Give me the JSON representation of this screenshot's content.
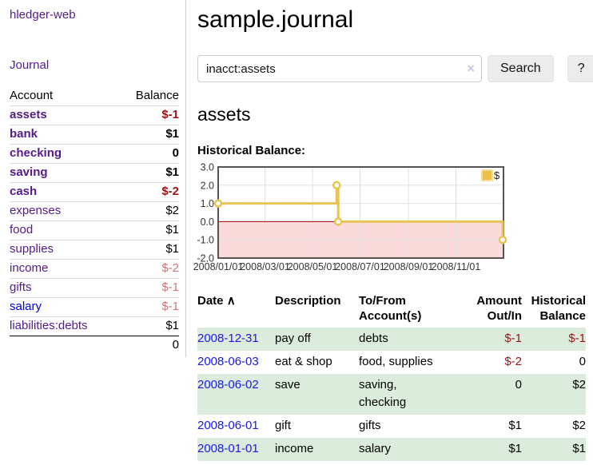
{
  "app": {
    "title": "hledger-web"
  },
  "sidebar": {
    "journal_link": "Journal",
    "accounts_table": {
      "headers": {
        "account": "Account",
        "balance": "Balance"
      },
      "rows": [
        {
          "name": "assets",
          "balance": "$-1",
          "level": 1,
          "bold": true,
          "balance_style": "neg-strong"
        },
        {
          "name": "bank",
          "balance": "$1",
          "level": 2,
          "bold": true,
          "balance_style": "normal"
        },
        {
          "name": "checking",
          "balance": "0",
          "level": 3,
          "bold": true,
          "balance_style": "normal"
        },
        {
          "name": "saving",
          "balance": "$1",
          "level": 3,
          "bold": true,
          "balance_style": "normal"
        },
        {
          "name": "cash",
          "balance": "$-2",
          "level": 2,
          "bold": true,
          "balance_style": "neg-strong"
        },
        {
          "name": "expenses",
          "balance": "$2",
          "level": 1,
          "bold": false,
          "balance_style": "normal"
        },
        {
          "name": "food",
          "balance": "$1",
          "level": 2,
          "bold": false,
          "balance_style": "normal"
        },
        {
          "name": "supplies",
          "balance": "$1",
          "level": 2,
          "bold": false,
          "balance_style": "normal"
        },
        {
          "name": "income",
          "balance": "$-2",
          "level": 1,
          "bold": false,
          "balance_style": "neg-muted"
        },
        {
          "name": "gifts",
          "balance": "$-1",
          "level": 2,
          "bold": false,
          "balance_style": "neg-muted"
        },
        {
          "name": "salary",
          "balance": "$-1",
          "level": 2,
          "bold": false,
          "balance_style": "neg-muted",
          "link_color": "blue"
        },
        {
          "name": "liabilities:debts",
          "balance": "$1",
          "level": 1,
          "bold": false,
          "balance_style": "normal"
        }
      ],
      "total": "0"
    }
  },
  "header": {
    "title": "sample.journal"
  },
  "search": {
    "value": "inacct:assets",
    "clear_icon": "×",
    "search_button": "Search",
    "help_button": "?"
  },
  "account_page": {
    "heading": "assets"
  },
  "chart_data": {
    "type": "line",
    "step": true,
    "title": "Historical Balance:",
    "series_name": "$",
    "legend": {
      "label": "$",
      "position": "top-right",
      "swatch_color": "#e8c04a",
      "swatch_border": "#f2dc9e"
    },
    "ylim": [
      -2,
      3
    ],
    "grid": true,
    "ytick_labels": [
      "3.0",
      "2.0",
      "1.0",
      "0.0",
      "-1.0",
      "-2.0"
    ],
    "ytick_values": [
      3,
      2,
      1,
      0,
      -1,
      -2
    ],
    "xticks": [
      {
        "label": "2008/01/01",
        "day": 0
      },
      {
        "label": "2008/03/01",
        "day": 60
      },
      {
        "label": "2008/05/01",
        "day": 121
      },
      {
        "label": "2008/07/01",
        "day": 182
      },
      {
        "label": "2008/09/01",
        "day": 244
      },
      {
        "label": "2008/11/01",
        "day": 305
      }
    ],
    "x_domain_days": 366,
    "points": [
      {
        "date": "2008-01-01",
        "day": 0,
        "value": 1
      },
      {
        "date": "2008-06-01",
        "day": 152,
        "value": 2
      },
      {
        "date": "2008-06-03",
        "day": 154,
        "value": 0
      },
      {
        "date": "2008-12-31",
        "day": 365,
        "value": -1
      }
    ],
    "colors": {
      "line": "#e8c455",
      "marker_fill": "#ffffff",
      "negative_region": "#fadada",
      "zero_line": "#990000",
      "grid": "#e2e2e2",
      "border": "#545454",
      "tick_text": "#333333"
    }
  },
  "register_table": {
    "headers": {
      "date": "Date",
      "sort_icon": "∧",
      "description": "Description",
      "accounts": "To/From Account(s)",
      "amount": "Amount Out/In",
      "balance": "Historical Balance"
    },
    "rows": [
      {
        "date": "2008-12-31",
        "description": "pay off",
        "accounts": "debts",
        "amount": "$-1",
        "amount_negative": true,
        "balance": "$-1",
        "balance_negative": true,
        "shaded": true
      },
      {
        "date": "2008-06-03",
        "description": "eat & shop",
        "accounts": "food, supplies",
        "amount": "$-2",
        "amount_negative": true,
        "balance": "0",
        "balance_negative": false,
        "shaded": false
      },
      {
        "date": "2008-06-02",
        "description": "save",
        "accounts": "saving, checking",
        "amount": "0",
        "amount_negative": false,
        "balance": "$2",
        "balance_negative": false,
        "shaded": true
      },
      {
        "date": "2008-06-01",
        "description": "gift",
        "accounts": "gifts",
        "amount": "$1",
        "amount_negative": false,
        "balance": "$2",
        "balance_negative": false,
        "shaded": false
      },
      {
        "date": "2008-01-01",
        "description": "income",
        "accounts": "salary",
        "amount": "$1",
        "amount_negative": false,
        "balance": "$1",
        "balance_negative": false,
        "shaded": true
      }
    ]
  },
  "colors": {
    "link_purple": "#551a8b",
    "link_blue": "#1a1ae0",
    "negative_strong": "#991414",
    "negative_muted": "#c87878",
    "row_stripe_green": "#dcecdc"
  }
}
